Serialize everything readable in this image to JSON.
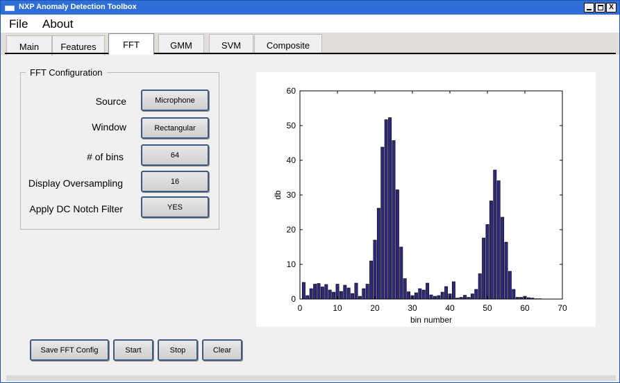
{
  "window": {
    "title": "NXP Anomaly Detection Toolbox",
    "buttons": {
      "minimize": "",
      "maximize": "",
      "close": "X"
    }
  },
  "menu": [
    {
      "label": "File"
    },
    {
      "label": "About"
    }
  ],
  "tabs": [
    {
      "label": "Main",
      "active": false
    },
    {
      "label": "Features",
      "active": false
    },
    {
      "label": "FFT",
      "active": true
    },
    {
      "label": "GMM",
      "active": false
    },
    {
      "label": "SVM",
      "active": false
    },
    {
      "label": "Composite",
      "active": false
    }
  ],
  "fft_config": {
    "title": "FFT Configuration",
    "rows": [
      {
        "label": "Source",
        "value": "Microphone"
      },
      {
        "label": "Window",
        "value": "Rectangular"
      },
      {
        "label": "# of bins",
        "value": "64"
      },
      {
        "label": "Display Oversampling",
        "value": "16"
      },
      {
        "label": "Apply DC Notch Filter",
        "value": "YES"
      }
    ]
  },
  "actions": {
    "save": "Save FFT Config",
    "start": "Start",
    "stop": "Stop",
    "clear": "Clear"
  },
  "colors": {
    "bar_fill": "#2e2a7a",
    "bar_edge": "#000000",
    "titlebar": "#2f6ed6"
  },
  "chart_data": {
    "type": "bar",
    "xlabel": "bin number",
    "ylabel": "db",
    "xlim": [
      0,
      70
    ],
    "ylim": [
      0,
      60
    ],
    "xticks": [
      0,
      10,
      20,
      30,
      40,
      50,
      60,
      70
    ],
    "yticks": [
      0,
      10,
      20,
      30,
      40,
      50,
      60
    ],
    "grid": false,
    "x": [
      1,
      2,
      3,
      4,
      5,
      6,
      7,
      8,
      9,
      10,
      11,
      12,
      13,
      14,
      15,
      16,
      17,
      18,
      19,
      20,
      21,
      22,
      23,
      24,
      25,
      26,
      27,
      28,
      29,
      30,
      31,
      32,
      33,
      34,
      35,
      36,
      37,
      38,
      39,
      40,
      41,
      42,
      43,
      44,
      45,
      46,
      47,
      48,
      49,
      50,
      51,
      52,
      53,
      54,
      55,
      56,
      57,
      58,
      59,
      60,
      61,
      62,
      63,
      64
    ],
    "values": [
      4.8,
      1.0,
      3.0,
      4.3,
      4.5,
      3.5,
      4.2,
      2.6,
      2.0,
      4.3,
      2.2,
      4.0,
      3.2,
      1.6,
      4.6,
      0.8,
      3.0,
      4.3,
      11.0,
      17.0,
      26.2,
      43.8,
      51.7,
      52.3,
      45.7,
      31.5,
      15.0,
      5.9,
      2.1,
      1.0,
      1.8,
      3.0,
      2.6,
      4.6,
      1.2,
      0.8,
      1.0,
      2.0,
      3.6,
      1.5,
      5.0,
      0.3,
      0.5,
      1.1,
      0.5,
      1.5,
      2.8,
      7.3,
      17.6,
      21.5,
      28.3,
      37.2,
      34.1,
      23.6,
      16.4,
      8.0,
      2.8,
      0.5,
      0.5,
      0.8,
      0.4,
      0.3,
      0.1,
      0.1
    ]
  }
}
